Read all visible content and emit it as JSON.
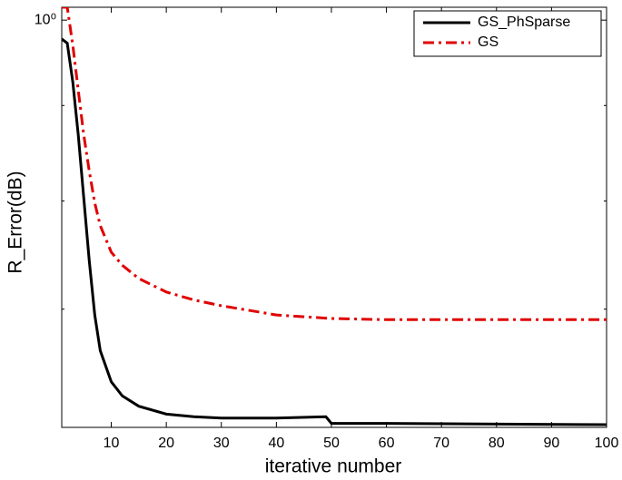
{
  "chart_data": {
    "type": "line",
    "xlabel": "iterative number",
    "ylabel": "R_Error(dB)",
    "log_y": true,
    "xlim": [
      1,
      100
    ],
    "xticks": [
      10,
      20,
      30,
      40,
      50,
      60,
      70,
      80,
      90,
      100
    ],
    "ylim": [
      0.605,
      1.016
    ],
    "yticks": [
      {
        "value": 1,
        "label": "10⁰"
      }
    ],
    "yminor_ticks": [
      0.7,
      0.8,
      0.9
    ],
    "legend": "upper right",
    "series": [
      {
        "name": "GS_PhSparse",
        "color": "#000000",
        "style": "solid",
        "x": [
          1,
          2,
          3,
          4,
          5,
          6,
          7,
          8,
          10,
          12,
          15,
          20,
          25,
          30,
          40,
          49,
          50,
          60,
          100
        ],
        "values": [
          0.977,
          0.972,
          0.927,
          0.868,
          0.803,
          0.743,
          0.695,
          0.665,
          0.64,
          0.629,
          0.621,
          0.615,
          0.613,
          0.612,
          0.612,
          0.613,
          0.608,
          0.608,
          0.607
        ]
      },
      {
        "name": "GS",
        "color": "#e00000",
        "style": "dashdot",
        "x": [
          1,
          2,
          3,
          4,
          5,
          6,
          7,
          8,
          10,
          12,
          15,
          20,
          25,
          30,
          40,
          50,
          60,
          100
        ],
        "values": [
          1.016,
          1.016,
          0.97,
          0.917,
          0.868,
          0.83,
          0.798,
          0.776,
          0.751,
          0.739,
          0.727,
          0.715,
          0.708,
          0.703,
          0.695,
          0.692,
          0.691,
          0.691
        ]
      }
    ]
  }
}
